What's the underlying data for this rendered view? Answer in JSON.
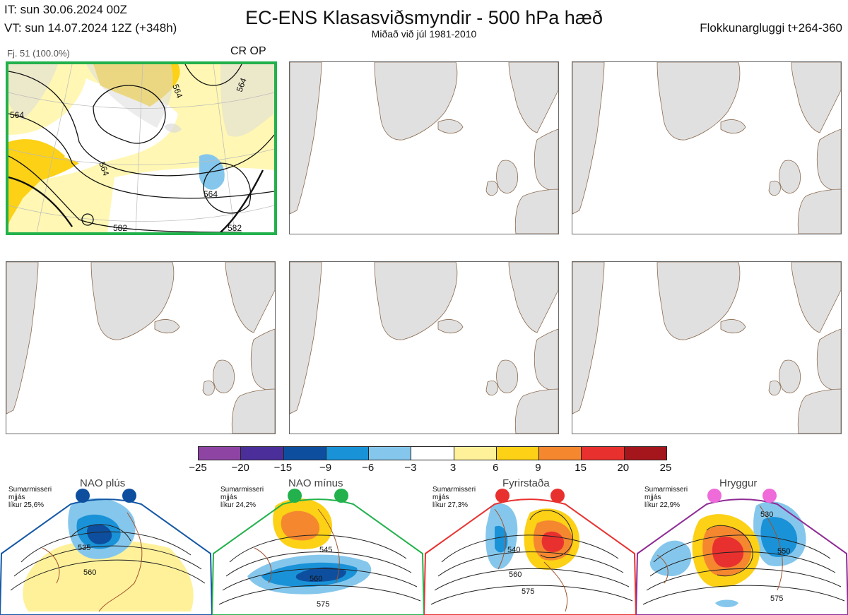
{
  "header": {
    "it": "IT: sun 30.06.2024 00Z",
    "vt": "VT: sun 14.07.2024 12Z  (+348h)",
    "title": "EC-ENS Klasasviðsmyndir - 500 hPa hæð",
    "subtitle": "Miðað við júl 1981-2010",
    "window": "Flokkunargluggi t+264-360"
  },
  "panels": [
    {
      "label": "Fj. 51 (100.0%)",
      "tag": "CR OP",
      "border_color": "#22b14c",
      "contour_labels": [
        "564",
        "564",
        "564",
        "564",
        "564",
        "582",
        "582"
      ]
    },
    {},
    {},
    {},
    {},
    {}
  ],
  "colorbar": {
    "colors": [
      "#8e44a3",
      "#4b2e9a",
      "#0d4f9e",
      "#1a92d8",
      "#85c7ec",
      "#ffffff",
      "#fff19a",
      "#fcd116",
      "#f5872f",
      "#e8312f",
      "#a5151c"
    ],
    "ticks": [
      "−25",
      "−20",
      "−15",
      "−9",
      "−6",
      "−3",
      "3",
      "6",
      "9",
      "15",
      "20",
      "25"
    ]
  },
  "regimes": [
    {
      "name": "NAO plús",
      "season": "Sumarmisseri",
      "smoothing": "mjjás",
      "likelihood": "líkur 25,6%",
      "color": "#1357a6",
      "dots": [
        "#0d4f9e",
        "#0d4f9e"
      ],
      "contour_labels": [
        "535",
        "560"
      ]
    },
    {
      "name": "NAO mínus",
      "season": "Sumarmisseri",
      "smoothing": "mjjás",
      "likelihood": "líkur 24,2%",
      "color": "#22b14c",
      "dots": [
        "#22b14c",
        "#22b14c"
      ],
      "contour_labels": [
        "545",
        "560",
        "575"
      ]
    },
    {
      "name": "Fyrirstaða",
      "season": "Sumarmisseri",
      "smoothing": "mjjás",
      "likelihood": "líkur 27,3%",
      "color": "#e8312f",
      "dots": [
        "#e8312f",
        "#e8312f"
      ],
      "contour_labels": [
        "540",
        "560",
        "575"
      ]
    },
    {
      "name": "Hryggur",
      "season": "Sumarmisseri",
      "smoothing": "mjjás",
      "likelihood": "líkur 22,9%",
      "color": "#8e2a95",
      "dots": [
        "#ee6bd9",
        "#ee6bd9"
      ],
      "contour_labels": [
        "530",
        "550",
        "575"
      ]
    }
  ]
}
